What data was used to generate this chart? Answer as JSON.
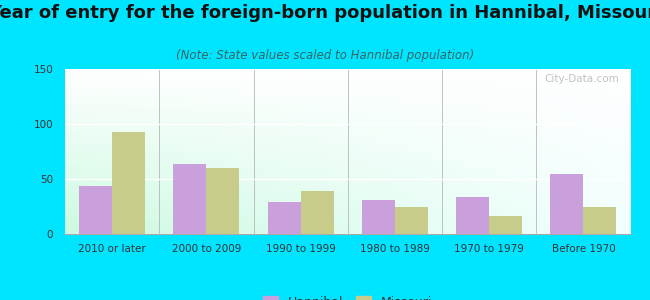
{
  "title": "Year of entry for the foreign-born population in Hannibal, Missouri",
  "subtitle": "(Note: State values scaled to Hannibal population)",
  "categories": [
    "2010 or later",
    "2000 to 2009",
    "1990 to 1999",
    "1980 to 1989",
    "1970 to 1979",
    "Before 1970"
  ],
  "hannibal_values": [
    44,
    64,
    29,
    31,
    34,
    55
  ],
  "missouri_values": [
    93,
    60,
    39,
    25,
    16,
    25
  ],
  "hannibal_color": "#c9a0dc",
  "missouri_color": "#c8cc8a",
  "ylim": [
    0,
    150
  ],
  "yticks": [
    0,
    50,
    100,
    150
  ],
  "background_outer": "#00e5ff",
  "bar_width": 0.35,
  "title_fontsize": 13,
  "subtitle_fontsize": 8.5,
  "tick_fontsize": 7.5,
  "legend_fontsize": 9,
  "watermark": "City-Data.com"
}
